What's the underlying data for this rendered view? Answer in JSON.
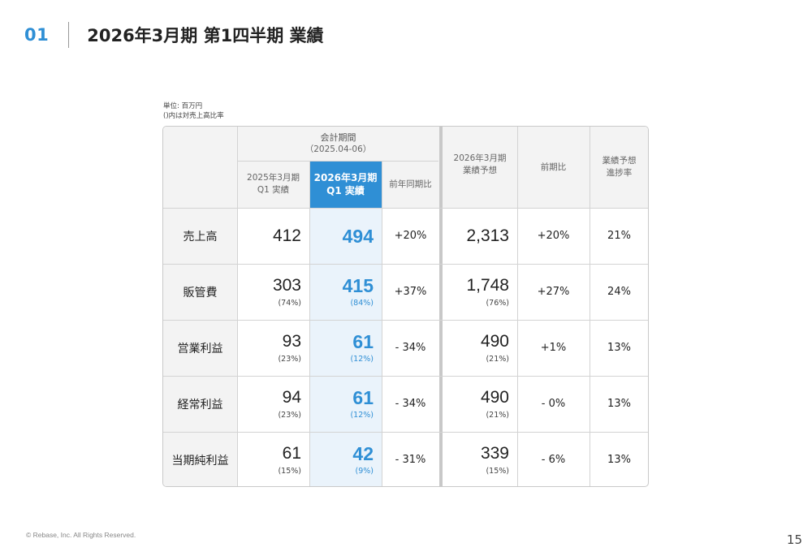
{
  "header": {
    "section_number": "01",
    "title": "2026年3月期 第1四半期 業績"
  },
  "notes": {
    "unit": "単位: 百万円",
    "ratio_note": "()内は対売上高比率"
  },
  "table": {
    "group_header": {
      "title": "会計期間",
      "period": "（2025.04-06）"
    },
    "columns": {
      "prev_q1": [
        "2025年3月期",
        "Q1 実績"
      ],
      "curr_q1": [
        "2026年3月期",
        "Q1 実績"
      ],
      "yoy": "前年同期比",
      "forecast": [
        "2026年3月期",
        "業績予想"
      ],
      "prev_ratio": "前期比",
      "progress": [
        "業績予想",
        "進捗率"
      ]
    },
    "rows": [
      {
        "label": "売上高",
        "prev": "412",
        "prev_ratio": "",
        "curr": "494",
        "curr_ratio": "",
        "yoy": "+20%",
        "forecast": "2,313",
        "forecast_ratio": "",
        "vs_prev": "+20%",
        "progress": "21%"
      },
      {
        "label": "販管費",
        "prev": "303",
        "prev_ratio": "(74%)",
        "curr": "415",
        "curr_ratio": "(84%)",
        "yoy": "+37%",
        "forecast": "1,748",
        "forecast_ratio": "(76%)",
        "vs_prev": "+27%",
        "progress": "24%"
      },
      {
        "label": "営業利益",
        "prev": "93",
        "prev_ratio": "(23%)",
        "curr": "61",
        "curr_ratio": "(12%)",
        "yoy": "- 34%",
        "forecast": "490",
        "forecast_ratio": "(21%)",
        "vs_prev": "+1%",
        "progress": "13%"
      },
      {
        "label": "経常利益",
        "prev": "94",
        "prev_ratio": "(23%)",
        "curr": "61",
        "curr_ratio": "(12%)",
        "yoy": "- 34%",
        "forecast": "490",
        "forecast_ratio": "(21%)",
        "vs_prev": "- 0%",
        "progress": "13%"
      },
      {
        "label": "当期純利益",
        "prev": "61",
        "prev_ratio": "(15%)",
        "curr": "42",
        "curr_ratio": "(9%)",
        "yoy": "- 31%",
        "forecast": "339",
        "forecast_ratio": "(15%)",
        "vs_prev": "- 6%",
        "progress": "13%"
      }
    ]
  },
  "footer": {
    "copyright": "© Rebase, Inc. All Rights Reserved.",
    "page_number": "15"
  },
  "colors": {
    "accent": "#2f8fd5",
    "highlight_column": "#eaf3fb",
    "header_background": "#f3f3f3"
  }
}
